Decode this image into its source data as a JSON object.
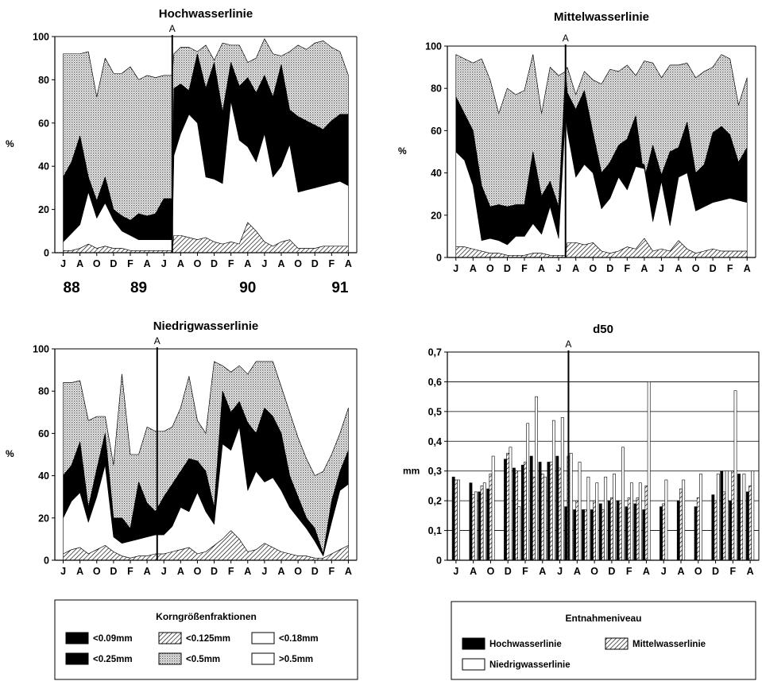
{
  "chart_data": [
    {
      "type": "area",
      "title": "Hochwasserlinie",
      "ylabel": "%",
      "ylim": [
        0,
        100
      ],
      "yticks": [
        0,
        20,
        40,
        60,
        80,
        100
      ],
      "month_labels": [
        "J",
        "A",
        "O",
        "D",
        "F",
        "A",
        "J",
        "A",
        "O",
        "D",
        "F",
        "A",
        "J",
        "A",
        "O",
        "D",
        "F",
        "A"
      ],
      "year_labels": [
        {
          "label": "88",
          "at": 0.5
        },
        {
          "label": "89",
          "at": 4.5
        },
        {
          "label": "90",
          "at": 11
        },
        {
          "label": "91",
          "at": 16.5
        }
      ],
      "marker": {
        "label": "A",
        "at": 6.5
      },
      "x": [
        0,
        0.5,
        1,
        1.5,
        2,
        2.5,
        3,
        3.5,
        4,
        4.5,
        5,
        5.5,
        6,
        6.5,
        6.6,
        7,
        7.5,
        8,
        8.5,
        9,
        9.5,
        10,
        10.5,
        11,
        11.5,
        12,
        12.5,
        13,
        13.5,
        14,
        14.5,
        15,
        15.5,
        16,
        16.5,
        17
      ],
      "boundaries": [
        [
          1,
          1,
          2,
          4,
          2,
          3,
          2,
          2,
          1,
          1,
          1,
          1,
          1,
          1,
          8,
          8,
          7,
          6,
          7,
          5,
          4,
          5,
          4,
          14,
          10,
          5,
          3,
          5,
          6,
          2,
          2,
          2,
          3,
          3,
          3,
          3
        ],
        [
          5,
          9,
          13,
          28,
          16,
          23,
          15,
          10,
          8,
          6,
          6,
          6,
          6,
          6,
          45,
          55,
          64,
          60,
          35,
          34,
          32,
          70,
          52,
          49,
          42,
          55,
          35,
          40,
          50,
          28,
          29,
          30,
          31,
          32,
          33,
          31
        ],
        [
          6,
          10,
          14,
          30,
          18,
          25,
          17,
          12,
          10,
          7,
          8,
          7,
          7,
          7,
          47,
          57,
          66,
          62,
          37,
          36,
          34,
          72,
          54,
          51,
          44,
          57,
          37,
          42,
          52,
          30,
          31,
          32,
          33,
          34,
          35,
          33
        ],
        [
          35,
          42,
          54,
          35,
          24,
          35,
          20,
          17,
          15,
          18,
          17,
          18,
          25,
          25,
          76,
          78,
          75,
          92,
          76,
          88,
          65,
          88,
          77,
          81,
          74,
          82,
          72,
          87,
          66,
          63,
          61,
          59,
          57,
          61,
          64,
          64
        ],
        [
          92,
          92,
          92,
          93,
          72,
          90,
          83,
          83,
          86,
          80,
          82,
          81,
          82,
          82,
          92,
          95,
          95,
          93,
          96,
          89,
          97,
          96,
          96,
          88,
          90,
          99,
          92,
          91,
          93,
          96,
          94,
          97,
          98,
          95,
          93,
          82
        ],
        [
          92,
          92,
          92,
          93,
          72,
          90,
          83,
          83,
          86,
          80,
          82,
          81,
          82,
          82,
          92,
          95,
          95,
          93,
          96,
          89,
          97,
          96,
          96,
          88,
          90,
          99,
          92,
          91,
          93,
          96,
          94,
          97,
          98,
          95,
          93,
          82
        ]
      ],
      "fills": [
        "hatch",
        "white",
        "black",
        "black",
        "dots",
        "white"
      ]
    },
    {
      "type": "area",
      "title": "Mittelwasserlinie",
      "ylabel": "%",
      "ylim": [
        0,
        100
      ],
      "yticks": [
        0,
        20,
        40,
        60,
        80,
        100
      ],
      "month_labels": [
        "J",
        "A",
        "O",
        "D",
        "F",
        "A",
        "J",
        "A",
        "O",
        "D",
        "F",
        "A",
        "J",
        "A",
        "O",
        "D",
        "F",
        "A"
      ],
      "marker": {
        "label": "A",
        "at": 6.4
      },
      "x": [
        0,
        0.5,
        1,
        1.5,
        2,
        2.5,
        3,
        3.5,
        4,
        4.5,
        5,
        5.5,
        6,
        6.4,
        6.5,
        7,
        7.5,
        8,
        8.5,
        9,
        9.5,
        10,
        10.5,
        11,
        11.5,
        12,
        12.5,
        13,
        13.5,
        14,
        14.5,
        15,
        15.5,
        16,
        16.5,
        17
      ],
      "boundaries": [
        [
          5,
          5,
          4,
          3,
          2,
          2,
          1,
          1,
          1,
          2,
          2,
          1,
          1,
          1,
          7,
          7,
          6,
          7,
          3,
          2,
          3,
          5,
          4,
          9,
          3,
          4,
          3,
          8,
          4,
          2,
          3,
          4,
          3,
          3,
          3,
          3
        ],
        [
          50,
          46,
          34,
          8,
          9,
          8,
          6,
          10,
          10,
          16,
          11,
          24,
          9,
          68,
          60,
          38,
          44,
          40,
          23,
          28,
          38,
          32,
          43,
          42,
          17,
          36,
          15,
          38,
          40,
          22,
          24,
          26,
          27,
          28,
          27,
          26
        ],
        [
          51,
          47,
          35,
          9,
          10,
          9,
          7,
          11,
          11,
          17,
          12,
          25,
          10,
          70,
          62,
          40,
          46,
          42,
          24,
          30,
          40,
          34,
          45,
          44,
          18,
          38,
          16,
          40,
          42,
          23,
          26,
          28,
          29,
          30,
          29,
          28
        ],
        [
          76,
          68,
          60,
          34,
          24,
          25,
          24,
          25,
          25,
          50,
          29,
          36,
          24,
          88,
          78,
          70,
          79,
          59,
          40,
          45,
          53,
          56,
          67,
          37,
          53,
          39,
          50,
          52,
          64,
          40,
          44,
          59,
          62,
          58,
          45,
          52
        ],
        [
          96,
          94,
          92,
          94,
          84,
          68,
          80,
          77,
          79,
          96,
          68,
          90,
          86,
          88,
          90,
          77,
          88,
          84,
          82,
          89,
          88,
          91,
          86,
          93,
          92,
          85,
          91,
          91,
          92,
          85,
          88,
          90,
          96,
          94,
          72,
          85
        ],
        [
          96,
          94,
          92,
          94,
          84,
          68,
          80,
          77,
          79,
          96,
          68,
          90,
          86,
          88,
          90,
          77,
          88,
          84,
          82,
          89,
          88,
          91,
          86,
          93,
          92,
          85,
          91,
          91,
          92,
          85,
          88,
          90,
          96,
          94,
          72,
          85
        ]
      ],
      "fills": [
        "hatch",
        "white",
        "black",
        "black",
        "dots",
        "white"
      ]
    },
    {
      "type": "area",
      "title": "Niedrigwasserlinie",
      "ylabel": "%",
      "ylim": [
        0,
        100
      ],
      "yticks": [
        0,
        20,
        40,
        60,
        80,
        100
      ],
      "month_labels": [
        "J",
        "A",
        "O",
        "D",
        "F",
        "A",
        "J",
        "A",
        "O",
        "D",
        "F",
        "A",
        "J",
        "A",
        "O",
        "D",
        "F",
        "A"
      ],
      "marker": {
        "label": "A",
        "at": 5.6
      },
      "x": [
        0,
        0.5,
        1,
        1.5,
        2,
        2.5,
        3,
        3.5,
        4,
        4.5,
        5,
        5.5,
        6,
        6.5,
        7,
        7.5,
        8,
        8.5,
        9,
        9.5,
        10,
        10.5,
        11,
        11.5,
        12,
        12.5,
        13,
        13.5,
        14,
        14.5,
        15,
        15.5,
        16,
        16.5,
        17
      ],
      "boundaries": [
        [
          3,
          5,
          6,
          3,
          5,
          7,
          4,
          2,
          1,
          2,
          2,
          3,
          3,
          4,
          5,
          6,
          3,
          4,
          7,
          10,
          14,
          10,
          4,
          5,
          8,
          6,
          4,
          3,
          2,
          2,
          1,
          1,
          3,
          5,
          7
        ],
        [
          20,
          28,
          32,
          18,
          30,
          45,
          11,
          8,
          9,
          10,
          11,
          12,
          12,
          16,
          25,
          23,
          32,
          23,
          17,
          55,
          52,
          63,
          33,
          42,
          37,
          39,
          33,
          25,
          20,
          15,
          9,
          2,
          18,
          33,
          36
        ],
        [
          21,
          29,
          34,
          19,
          32,
          47,
          12,
          9,
          10,
          11,
          12,
          13,
          13,
          17,
          26,
          24,
          34,
          24,
          18,
          57,
          54,
          65,
          35,
          44,
          39,
          41,
          35,
          27,
          22,
          16,
          10,
          3,
          19,
          34,
          38
        ],
        [
          40,
          45,
          56,
          25,
          43,
          60,
          20,
          20,
          15,
          37,
          27,
          23,
          30,
          36,
          42,
          48,
          47,
          42,
          25,
          80,
          70,
          75,
          65,
          60,
          72,
          68,
          60,
          40,
          30,
          20,
          15,
          3,
          28,
          42,
          52
        ],
        [
          84,
          84,
          85,
          66,
          68,
          68,
          45,
          88,
          50,
          50,
          63,
          61,
          61,
          63,
          72,
          87,
          66,
          60,
          94,
          92,
          89,
          92,
          88,
          94,
          94,
          94,
          82,
          70,
          58,
          48,
          40,
          42,
          50,
          60,
          72
        ],
        [
          84,
          84,
          85,
          66,
          68,
          68,
          45,
          88,
          50,
          50,
          63,
          61,
          61,
          63,
          72,
          87,
          66,
          60,
          94,
          92,
          89,
          92,
          88,
          94,
          94,
          94,
          82,
          70,
          58,
          48,
          40,
          42,
          50,
          60,
          72
        ]
      ],
      "fills": [
        "hatch",
        "white",
        "black",
        "black",
        "dots",
        "white"
      ]
    },
    {
      "type": "bar",
      "title": "d50",
      "ylabel": "mm",
      "ylim": [
        0,
        0.7
      ],
      "yticks": [
        "0",
        "0,1",
        "0,2",
        "0,3",
        "0,4",
        "0,5",
        "0,6",
        "0,7"
      ],
      "month_labels": [
        "J",
        "A",
        "O",
        "D",
        "F",
        "A",
        "J",
        "A",
        "O",
        "D",
        "F",
        "A",
        "J",
        "A",
        "O",
        "D",
        "F",
        "A"
      ],
      "marker": {
        "label": "A",
        "at": 6.5
      },
      "series": [
        {
          "name": "Hochwasserlinie",
          "x": [
            0,
            1,
            1.5,
            2,
            3,
            3.5,
            4,
            4.5,
            5,
            5.5,
            6,
            6.5,
            7,
            7.5,
            8,
            8.5,
            9,
            9.5,
            10,
            10.5,
            11,
            12,
            13,
            14,
            15,
            15.5,
            16,
            16.5,
            17
          ],
          "values": [
            0.28,
            0.26,
            0.23,
            0.24,
            0.34,
            0.31,
            0.32,
            0.35,
            0.33,
            0.33,
            0.35,
            0.18,
            0.17,
            0.17,
            0.17,
            0.19,
            0.2,
            0.2,
            0.18,
            0.19,
            0.17,
            0.18,
            0.2,
            0.18,
            0.22,
            0.3,
            0.2,
            0.29,
            0.23
          ]
        },
        {
          "name": "Mittelwasserlinie",
          "x": [
            0,
            1,
            1.5,
            2,
            3,
            3.5,
            4,
            4.5,
            5,
            5.5,
            6,
            6.5,
            7,
            7.5,
            8,
            8.5,
            9,
            9.5,
            10,
            10.5,
            11,
            12,
            13,
            14,
            15,
            15.5,
            16,
            16.5,
            17
          ],
          "values": [
            0.27,
            0.22,
            0.25,
            0.29,
            0.36,
            0.3,
            0.33,
            0.28,
            0.29,
            0.33,
            0.31,
            0.35,
            0.2,
            0.17,
            0.2,
            0.17,
            0.21,
            0.2,
            0.21,
            0.21,
            0.25,
            0.19,
            0.24,
            0.21,
            0.2,
            0.23,
            0.3,
            0.2,
            0.25
          ]
        },
        {
          "name": "Niedrigwasserlinie",
          "x": [
            0,
            1,
            1.5,
            2,
            3,
            3.5,
            4,
            4.5,
            5,
            5.5,
            6,
            6.5,
            7,
            7.5,
            8,
            8.5,
            9,
            9.5,
            10,
            10.5,
            11,
            12,
            13,
            14,
            15,
            15.5,
            16,
            16.5,
            17
          ],
          "values": [
            0.27,
            0.23,
            0.26,
            0.35,
            0.38,
            0.18,
            0.46,
            0.55,
            0.28,
            0.47,
            0.48,
            0.36,
            0.33,
            0.28,
            0.26,
            0.28,
            0.29,
            0.38,
            0.26,
            0.26,
            0.6,
            0.27,
            0.27,
            0.29,
            0.29,
            0.3,
            0.57,
            0.29,
            0.3
          ]
        }
      ]
    }
  ],
  "legends": [
    {
      "title": "Korngrößenfraktionen",
      "items": [
        {
          "label": "<0.09mm",
          "fill": "black"
        },
        {
          "label": "<0.125mm",
          "fill": "hatch"
        },
        {
          "label": "<0.18mm",
          "fill": "white"
        },
        {
          "label": "<0.25mm",
          "fill": "black"
        },
        {
          "label": "<0.5mm",
          "fill": "dots"
        },
        {
          "label": ">0.5mm",
          "fill": "white"
        }
      ]
    },
    {
      "title": "Entnahmeniveau",
      "items": [
        {
          "label": "Hochwasserlinie",
          "fill": "black"
        },
        {
          "label": "Mittelwasserlinie",
          "fill": "hatch"
        },
        {
          "label": "Niedrigwasserlinie",
          "fill": "white"
        }
      ]
    }
  ]
}
